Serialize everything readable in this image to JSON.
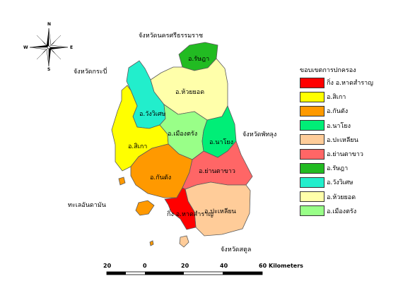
{
  "compass": {
    "n": "N",
    "s": "S",
    "e": "E",
    "w": "W"
  },
  "neighbors": {
    "north": "จังหวัดนครศรีธรรมราช",
    "west": "จังหวัดกระบี่",
    "east": "จังหวัดพัทลุง",
    "south": "จังหวัดสตูล",
    "sea": "ทะเลอันดามัน"
  },
  "districts": {
    "kingamp": "กิ่ง อ.หาดสำราญ",
    "sikao": "อ.สิเกา",
    "kantang": "อ.กันตัง",
    "nayong": "อ.นาโยง",
    "palian": "อ.ปะเหลียน",
    "yanta": "อ.ย่านตาขาว",
    "ratsada": "อ.รัษฎา",
    "wangwiset": "อ.วังวิเศษ",
    "huaiyot": "อ.ห้วยยอด",
    "mueang": "อ.เมืองตรัง"
  },
  "legend": {
    "title": "ขอบเขตการปกครอง",
    "items": [
      {
        "label": "กิ่ง อ.หาดสำราญ",
        "color": "#ff0000"
      },
      {
        "label": "อ.สิเกา",
        "color": "#ffff00"
      },
      {
        "label": "อ.กันตัง",
        "color": "#ff9900"
      },
      {
        "label": "อ.นาโยง",
        "color": "#00ee77"
      },
      {
        "label": "อ.ปะเหลียน",
        "color": "#ffcc99"
      },
      {
        "label": "อ.ย่านตาขาว",
        "color": "#ff6666"
      },
      {
        "label": "อ.รัษฎา",
        "color": "#22bb22"
      },
      {
        "label": "อ.วังวิเศษ",
        "color": "#22eecc"
      },
      {
        "label": "อ.ห้วยยอด",
        "color": "#ffffaa"
      },
      {
        "label": "อ.เมืองตรัง",
        "color": "#99ff88"
      }
    ]
  },
  "scale": {
    "ticks": [
      "20",
      "0",
      "20",
      "40",
      "60"
    ],
    "unit": "Kilometers"
  }
}
